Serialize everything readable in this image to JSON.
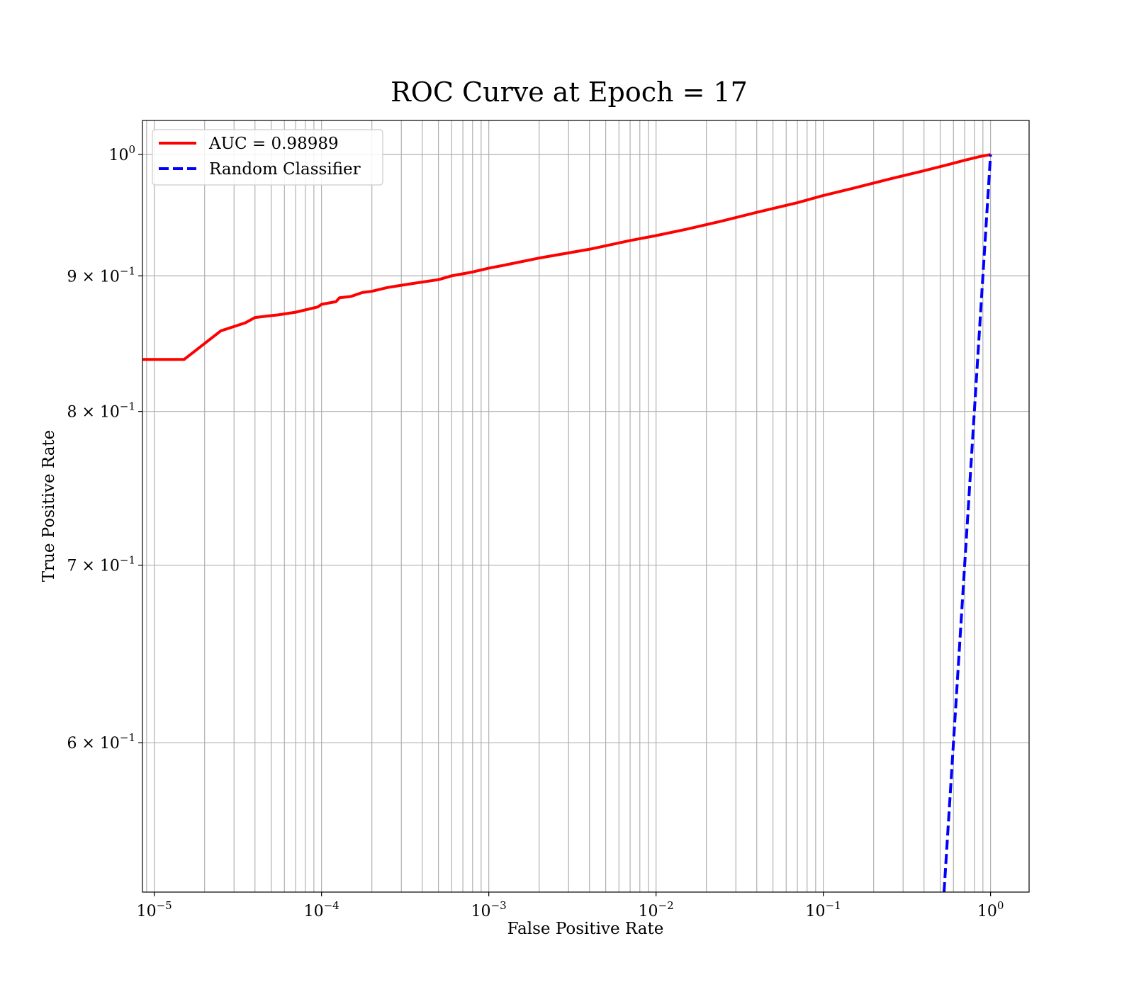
{
  "chart_data": {
    "type": "line",
    "title": "ROC Curve at Epoch = 17",
    "xlabel": "False Positive Rate",
    "ylabel": "True Positive Rate",
    "xscale": "log",
    "yscale": "log",
    "xlim": [
      8.5e-06,
      1.7
    ],
    "ylim": [
      0.527,
      1.03
    ],
    "grid": true,
    "legend_position": "upper-left",
    "x_ticks": [
      {
        "value": 1e-05,
        "base": "10",
        "exp": "−5"
      },
      {
        "value": 0.0001,
        "base": "10",
        "exp": "−4"
      },
      {
        "value": 0.001,
        "base": "10",
        "exp": "−3"
      },
      {
        "value": 0.01,
        "base": "10",
        "exp": "−2"
      },
      {
        "value": 0.1,
        "base": "10",
        "exp": "−1"
      },
      {
        "value": 1,
        "base": "10",
        "exp": "0"
      }
    ],
    "y_ticks": [
      {
        "value": 1.0,
        "base": "10",
        "exp": "0"
      },
      {
        "value": 0.9,
        "base": "9 × 10",
        "exp": "−1"
      },
      {
        "value": 0.8,
        "base": "8 × 10",
        "exp": "−1"
      },
      {
        "value": 0.7,
        "base": "7 × 10",
        "exp": "−1"
      },
      {
        "value": 0.6,
        "base": "6 × 10",
        "exp": "−1"
      }
    ],
    "series": [
      {
        "name": "AUC = 0.98989",
        "color": "#ff0000",
        "style": "solid",
        "x": [
          8.5e-06,
          1.51e-05,
          2.5e-05,
          3.5e-05,
          4e-05,
          5.5e-05,
          7e-05,
          9.5e-05,
          0.0001,
          0.000122,
          0.000128,
          0.00015,
          0.000175,
          0.0002,
          0.00025,
          0.00035,
          0.0005,
          0.0006,
          0.0008,
          0.001,
          0.0012,
          0.002,
          0.004,
          0.007,
          0.01,
          0.015,
          0.025,
          0.04,
          0.07,
          0.1,
          0.15,
          0.25,
          0.4,
          0.55,
          0.7,
          0.85,
          1.0
        ],
        "y": [
          0.837,
          0.837,
          0.858,
          0.864,
          0.868,
          0.87,
          0.872,
          0.876,
          0.878,
          0.88,
          0.883,
          0.884,
          0.887,
          0.888,
          0.891,
          0.894,
          0.897,
          0.9,
          0.903,
          0.906,
          0.908,
          0.914,
          0.921,
          0.928,
          0.932,
          0.937,
          0.944,
          0.951,
          0.959,
          0.965,
          0.971,
          0.979,
          0.986,
          0.991,
          0.995,
          0.998,
          1.0
        ]
      },
      {
        "name": "Random Classifier",
        "color": "#0000ff",
        "style": "dashed",
        "x": [
          0.527,
          1.0
        ],
        "y": [
          0.527,
          1.0
        ]
      }
    ]
  }
}
